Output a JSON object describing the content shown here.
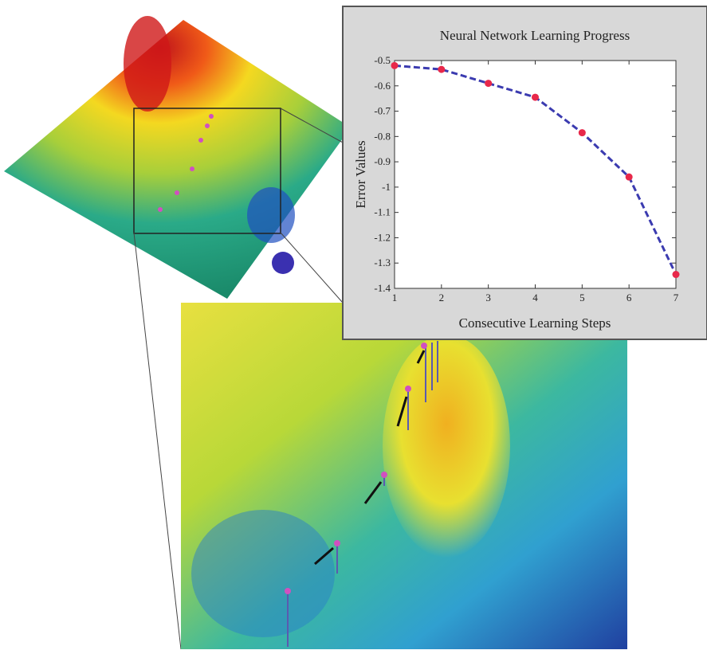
{
  "chart_data": {
    "type": "line",
    "title": "Neural Network Learning Progress",
    "x_label": "Consecutive Learning Steps",
    "y_label": "Error Values",
    "x": [
      1,
      2,
      3,
      4,
      5,
      6,
      7
    ],
    "values": [
      -0.52,
      -0.535,
      -0.59,
      -0.645,
      -0.785,
      -0.96,
      -1.345
    ],
    "color": "#3b3bb0",
    "marker_color": "#e8284a",
    "xlim": [
      1,
      7
    ],
    "xticks": [
      1,
      2,
      3,
      4,
      5,
      6,
      7
    ],
    "ylim": [
      -1.4,
      -0.5
    ],
    "yticks": [
      -1.4,
      -1.3,
      -1.2,
      -1.1,
      -1,
      -0.9,
      -0.8,
      -0.7,
      -0.6,
      -0.5
    ]
  }
}
